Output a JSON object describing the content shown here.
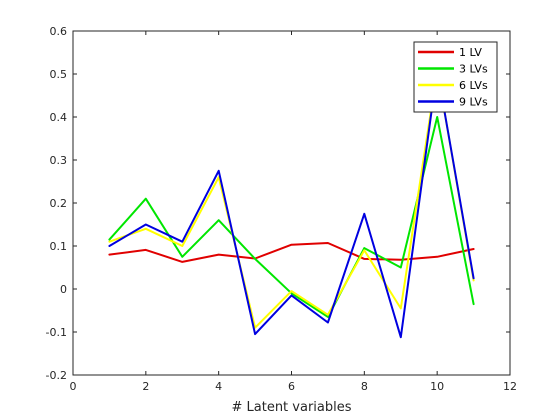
{
  "chart_data": {
    "type": "line",
    "title": "",
    "xlabel": "# Latent variables",
    "ylabel": "",
    "xlim": [
      0,
      12
    ],
    "ylim": [
      -0.2,
      0.6
    ],
    "xticks": [
      0,
      2,
      4,
      6,
      8,
      10,
      12
    ],
    "yticks": [
      -0.2,
      -0.1,
      0,
      0.1,
      0.2,
      0.3,
      0.4,
      0.5,
      0.6
    ],
    "grid": false,
    "legend_position": "top-right",
    "x": [
      1,
      2,
      3,
      4,
      5,
      6,
      7,
      8,
      9,
      10,
      11
    ],
    "series": [
      {
        "name": "1 LV",
        "color": "#e00000",
        "values": [
          0.08,
          0.091,
          0.063,
          0.08,
          0.071,
          0.103,
          0.107,
          0.07,
          0.068,
          0.075,
          0.093
        ]
      },
      {
        "name": "3 LVs",
        "color": "#00e600",
        "values": [
          0.115,
          0.21,
          0.075,
          0.16,
          0.07,
          -0.01,
          -0.065,
          0.095,
          0.05,
          0.4,
          -0.035
        ]
      },
      {
        "name": "6 LVs",
        "color": "#ffff00",
        "values": [
          0.11,
          0.14,
          0.1,
          0.26,
          -0.09,
          -0.005,
          -0.06,
          0.09,
          -0.045,
          0.51,
          0.02
        ]
      },
      {
        "name": "9 LVs",
        "color": "#0000e0",
        "values": [
          0.1,
          0.15,
          0.11,
          0.275,
          -0.105,
          -0.015,
          -0.078,
          0.175,
          -0.112,
          0.51,
          0.025
        ]
      }
    ]
  }
}
